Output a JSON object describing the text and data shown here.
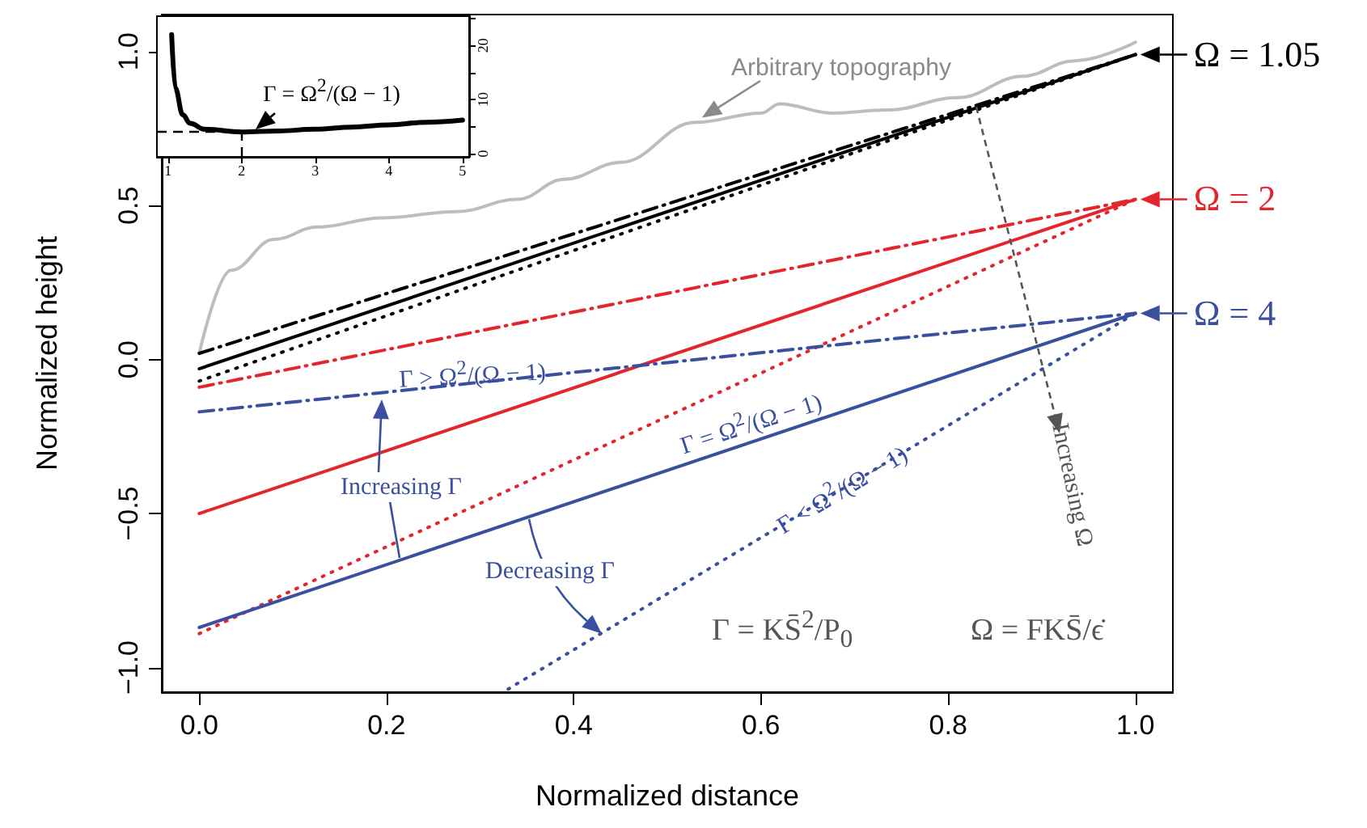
{
  "chart_data": [
    {
      "type": "line",
      "xlabel": "Normalized distance",
      "ylabel": "Normalized height",
      "xlim": [
        -0.04,
        1.04
      ],
      "ylim": [
        -1.08,
        1.12
      ],
      "xticks": [
        {
          "value": 0,
          "label": "0.0"
        },
        0.2,
        0.4,
        0.6,
        0.8,
        {
          "value": 1,
          "label": "1.0"
        }
      ],
      "yticks": [
        {
          "value": -1,
          "label": "−1.0"
        },
        {
          "value": -0.5,
          "label": "−0.5"
        },
        {
          "value": 0,
          "label": "0.0"
        },
        0.5,
        {
          "value": 1,
          "label": "1.0"
        }
      ],
      "grid": false,
      "marker": "none",
      "series": [
        {
          "color": "#bdbdbd",
          "line_style": "solid",
          "x": [
            0,
            0.034,
            0.08,
            0.126,
            0.195,
            0.275,
            0.34,
            0.39,
            0.45,
            0.53,
            0.6,
            0.62,
            0.676,
            0.735,
            0.81,
            0.88,
            0.935,
            1
          ],
          "values": [
            0.02,
            0.29,
            0.39,
            0.43,
            0.46,
            0.48,
            0.52,
            0.585,
            0.64,
            0.77,
            0.8,
            0.83,
            0.8,
            0.81,
            0.85,
            0.92,
            0.97,
            1.03
          ]
        },
        {
          "color": "#000000",
          "line_style": "solid",
          "x": [
            0,
            1
          ],
          "values": [
            -0.03,
            0.99
          ]
        },
        {
          "color": "#000000",
          "line_style": "dashdot",
          "x": [
            0,
            1
          ],
          "values": [
            0.02,
            0.99
          ]
        },
        {
          "color": "#000000",
          "line_style": "dotted",
          "x": [
            0,
            1
          ],
          "values": [
            -0.07,
            0.99
          ]
        },
        {
          "color": "#e3262e",
          "line_style": "solid",
          "x": [
            0,
            1
          ],
          "values": [
            -0.5,
            0.52
          ]
        },
        {
          "color": "#e3262e",
          "line_style": "dashdot",
          "x": [
            0,
            1
          ],
          "values": [
            -0.09,
            0.52
          ]
        },
        {
          "color": "#e3262e",
          "line_style": "dotted",
          "x": [
            0,
            1
          ],
          "values": [
            -0.89,
            0.52
          ]
        },
        {
          "color": "#3a4f9e",
          "line_style": "solid",
          "x": [
            0,
            1
          ],
          "values": [
            -0.87,
            0.15
          ]
        },
        {
          "color": "#3a4f9e",
          "line_style": "dashdot",
          "x": [
            0,
            1
          ],
          "values": [
            -0.17,
            0.15
          ]
        },
        {
          "color": "#3a4f9e",
          "line_style": "dotted",
          "x": [
            0.33,
            1
          ],
          "values": [
            -1.07,
            0.15
          ]
        }
      ],
      "annotations": [
        {
          "text": "Arbitrary topography",
          "x": 0.537,
          "y": 0.785
        },
        {
          "text": "Ω = 1.05",
          "x": 1,
          "y": 0.99
        },
        {
          "text": "Ω = 2",
          "x": 1,
          "y": 0.52
        },
        {
          "text": "Ω = 4",
          "x": 1,
          "y": 0.15
        },
        {
          "text": "Γ > Ω$^{2}$/(Ω − 1)",
          "x": 0.2,
          "y": -0.11
        },
        "Γ = Ω$^{2}$/(Ω − 1)",
        "Γ < Ω$^{2}$/(Ω − 1)",
        "Increasing Γ",
        {
          "text": "Decreasing Γ",
          "x": 0.43,
          "y": -0.89
        },
        {
          "text": "Increasing Ω",
          "x": 0.83,
          "y": 0.82
        },
        "Γ = KS̄$^{2}$/P$_{0}$",
        "Ω = FKS̄/ϵ̇"
      ]
    },
    {
      "type": "line",
      "xlim": [
        0.85,
        5.09
      ],
      "xticks": [
        1,
        2,
        3,
        4,
        5
      ],
      "y2lim": [
        -0.6,
        25.4
      ],
      "y2ticks": [
        0,
        {
          "value": 5,
          "label": null
        },
        10,
        {
          "value": 15,
          "label": null
        },
        20,
        {
          "value": 25,
          "label": null
        }
      ],
      "grid": false,
      "marker": "none",
      "series": [
        {
          "color": "#000000",
          "axis": "y2",
          "line_style": "solid",
          "x": [
            1.05,
            1.1,
            1.2,
            1.3,
            1.5,
            2,
            2.5,
            3,
            3.5,
            4,
            4.5,
            5
          ],
          "values": [
            22,
            12.1,
            7.2,
            5.6,
            4.5,
            4,
            4.2,
            4.5,
            4.9,
            5.3,
            5.8,
            6.2
          ]
        }
      ],
      "ref_lines": [
        {
          "axis": "y2",
          "value": 4,
          "color": "#000000",
          "line_style": "dashed"
        },
        {
          "axis": "x",
          "value": 2,
          "color": "#000000",
          "line_style": "dashed"
        }
      ],
      "annotations": [
        "Γ = Ω$^{2}$/(Ω − 1)"
      ]
    }
  ]
}
